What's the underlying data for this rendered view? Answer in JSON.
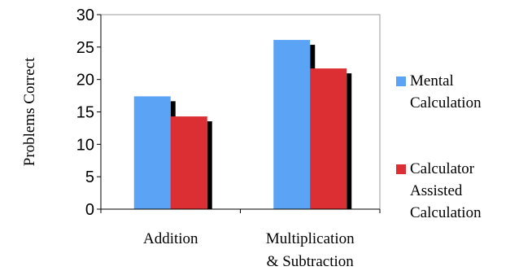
{
  "chart_data": {
    "type": "bar",
    "title": "",
    "xlabel": "",
    "ylabel": "Problems Correct",
    "ylim": [
      0,
      30
    ],
    "yticks": [
      0,
      5,
      10,
      15,
      20,
      25,
      30
    ],
    "categories": [
      [
        "Addition"
      ],
      [
        "Multiplication",
        "& Subtraction"
      ]
    ],
    "series": [
      {
        "name": [
          "Mental",
          "Calculation"
        ],
        "values": [
          17.4,
          26.1
        ],
        "color": "#5ba4f5"
      },
      {
        "name": [
          "Calculator",
          "Assisted",
          "Calculation"
        ],
        "values": [
          14.3,
          21.7
        ],
        "color": "#dc2f34"
      }
    ],
    "grid": false,
    "legend": "right"
  }
}
